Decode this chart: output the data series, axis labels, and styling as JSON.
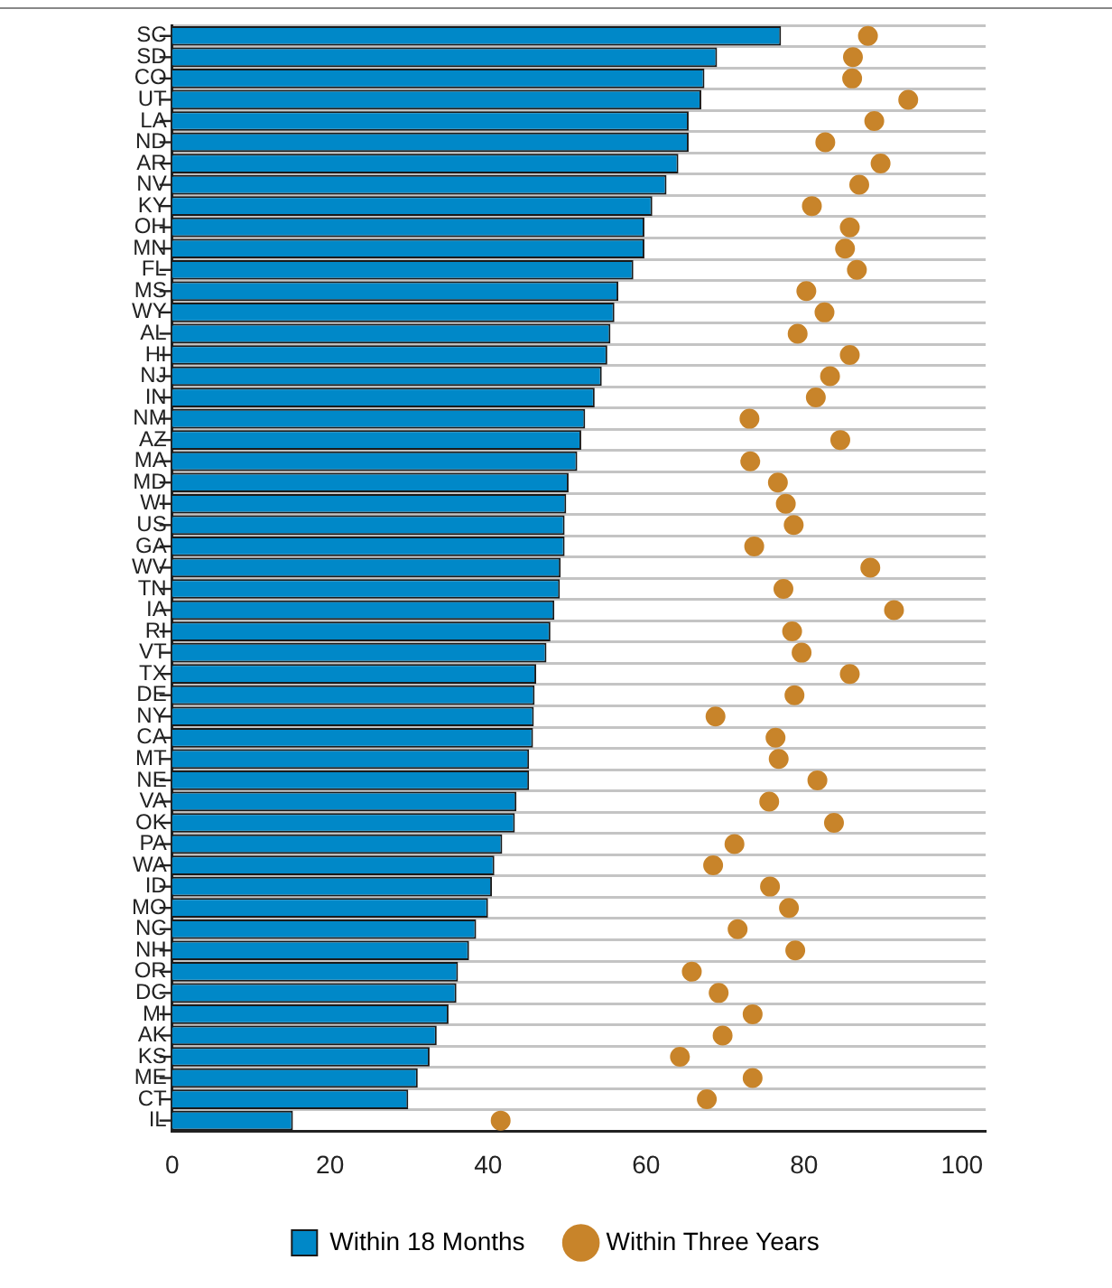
{
  "chart_data": {
    "type": "bar",
    "orientation": "horizontal",
    "categories": [
      "SC",
      "SD",
      "CO",
      "UT",
      "LA",
      "ND",
      "AR",
      "NV",
      "KY",
      "OH",
      "MN",
      "FL",
      "MS",
      "WY",
      "AL",
      "HI",
      "NJ",
      "IN",
      "NM",
      "AZ",
      "MA",
      "MD",
      "WI",
      "US",
      "GA",
      "WV",
      "TN",
      "IA",
      "RI",
      "VT",
      "TX",
      "DE",
      "NY",
      "CA",
      "MT",
      "NE",
      "VA",
      "OK",
      "PA",
      "WA",
      "ID",
      "MO",
      "NC",
      "NH",
      "OR",
      "DC",
      "MI",
      "AK",
      "KS",
      "ME",
      "CT",
      "IL"
    ],
    "series": [
      {
        "name": "Within 18 Months",
        "color": "#0088c8",
        "values": [
          77.1,
          69.0,
          67.4,
          67.0,
          65.4,
          65.4,
          64.1,
          62.6,
          60.8,
          59.8,
          59.8,
          58.4,
          56.5,
          56.0,
          55.5,
          55.1,
          54.4,
          53.5,
          52.3,
          51.8,
          51.3,
          50.2,
          49.9,
          49.7,
          49.7,
          49.2,
          49.1,
          48.4,
          47.9,
          47.4,
          46.1,
          45.9,
          45.8,
          45.7,
          45.2,
          45.2,
          43.6,
          43.4,
          41.8,
          40.8,
          40.5,
          40.0,
          38.5,
          37.6,
          36.2,
          36.0,
          35.0,
          33.5,
          32.6,
          31.1,
          29.9,
          15.3
        ]
      },
      {
        "name": "Within Three Years",
        "type": "scatter",
        "color": "#c8842a",
        "values": [
          88.1,
          86.2,
          86.1,
          93.2,
          88.9,
          82.7,
          89.7,
          87.0,
          81.0,
          85.8,
          85.2,
          86.7,
          80.3,
          82.6,
          79.2,
          85.8,
          83.3,
          81.5,
          73.1,
          84.6,
          73.2,
          76.7,
          77.7,
          78.7,
          73.7,
          88.4,
          77.4,
          91.4,
          78.5,
          79.7,
          85.8,
          78.8,
          68.8,
          76.4,
          76.8,
          81.7,
          75.6,
          83.8,
          71.2,
          68.5,
          75.7,
          78.1,
          71.6,
          78.9,
          65.8,
          69.2,
          73.5,
          69.7,
          64.3,
          73.5,
          67.7,
          41.6
        ]
      }
    ],
    "xlim": [
      0,
      103
    ],
    "xticks": [
      0,
      20,
      40,
      60,
      80,
      100
    ],
    "grid": "y",
    "legend": "bottom",
    "marker": "circle"
  }
}
